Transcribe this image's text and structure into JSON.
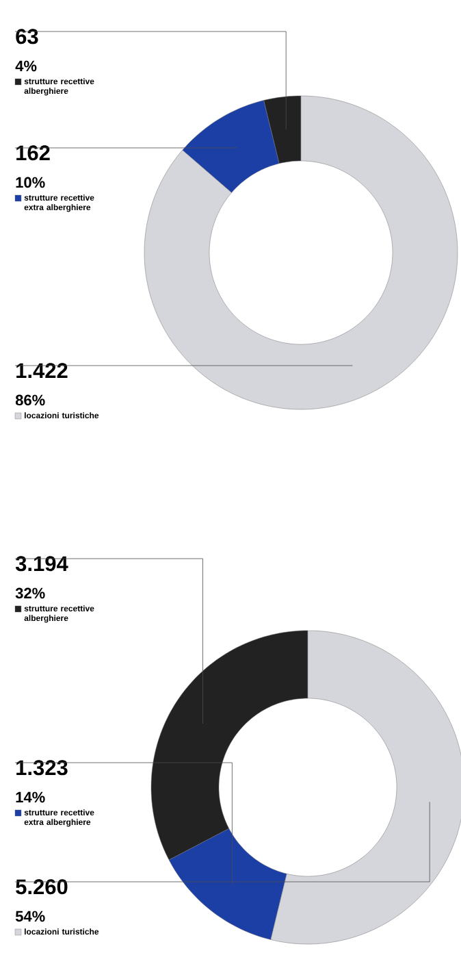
{
  "chart_data": [
    {
      "type": "donut",
      "categories": [
        "strutture recettive alberghiere",
        "strutture recettive extra alberghiere",
        "locazioni turistiche"
      ],
      "values": [
        63,
        162,
        1422
      ],
      "colors": [
        "#222222",
        "#1c3fa6",
        "#d4d6db"
      ],
      "value_labels": [
        "63",
        "162",
        "1.422"
      ],
      "annotations": [
        "4%",
        "10%",
        "86%"
      ],
      "legend": "left"
    },
    {
      "type": "donut",
      "categories": [
        "strutture recettive alberghiere",
        "strutture recettive extra alberghiere",
        "locazioni turistiche"
      ],
      "values": [
        3194,
        1323,
        5260
      ],
      "colors": [
        "#222222",
        "#1c3fa6",
        "#d4d6db"
      ],
      "value_labels": [
        "3.194",
        "1.323",
        "5.260"
      ],
      "annotations": [
        "32%",
        "14%",
        "54%"
      ],
      "legend": "left"
    }
  ]
}
